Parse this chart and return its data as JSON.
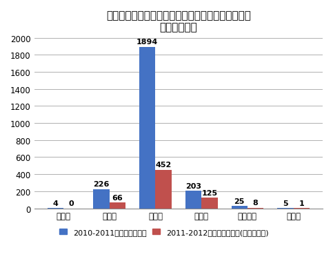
{
  "title_line1": "都内学校などにおけるインフルエンザ様疾患による",
  "title_line2": "臨時休業報告",
  "categories": [
    "保育園",
    "幼稚園",
    "小学校",
    "中学校",
    "高等学校",
    "その他"
  ],
  "series1_label": "2010-2011年シーズン累計",
  "series2_label": "2011-2012年シーズン累計(現時点まで)",
  "series1_values": [
    4,
    226,
    1894,
    203,
    25,
    5
  ],
  "series2_values": [
    0,
    66,
    452,
    125,
    8,
    1
  ],
  "series1_color": "#4472C4",
  "series2_color": "#C0504D",
  "ylim": [
    0,
    2000
  ],
  "yticks": [
    0,
    200,
    400,
    600,
    800,
    1000,
    1200,
    1400,
    1600,
    1800,
    2000
  ],
  "bar_width": 0.35,
  "title_fontsize": 11,
  "tick_fontsize": 8.5,
  "label_fontsize": 8,
  "legend_fontsize": 8,
  "background_color": "#ffffff",
  "grid_color": "#b0b0b0"
}
